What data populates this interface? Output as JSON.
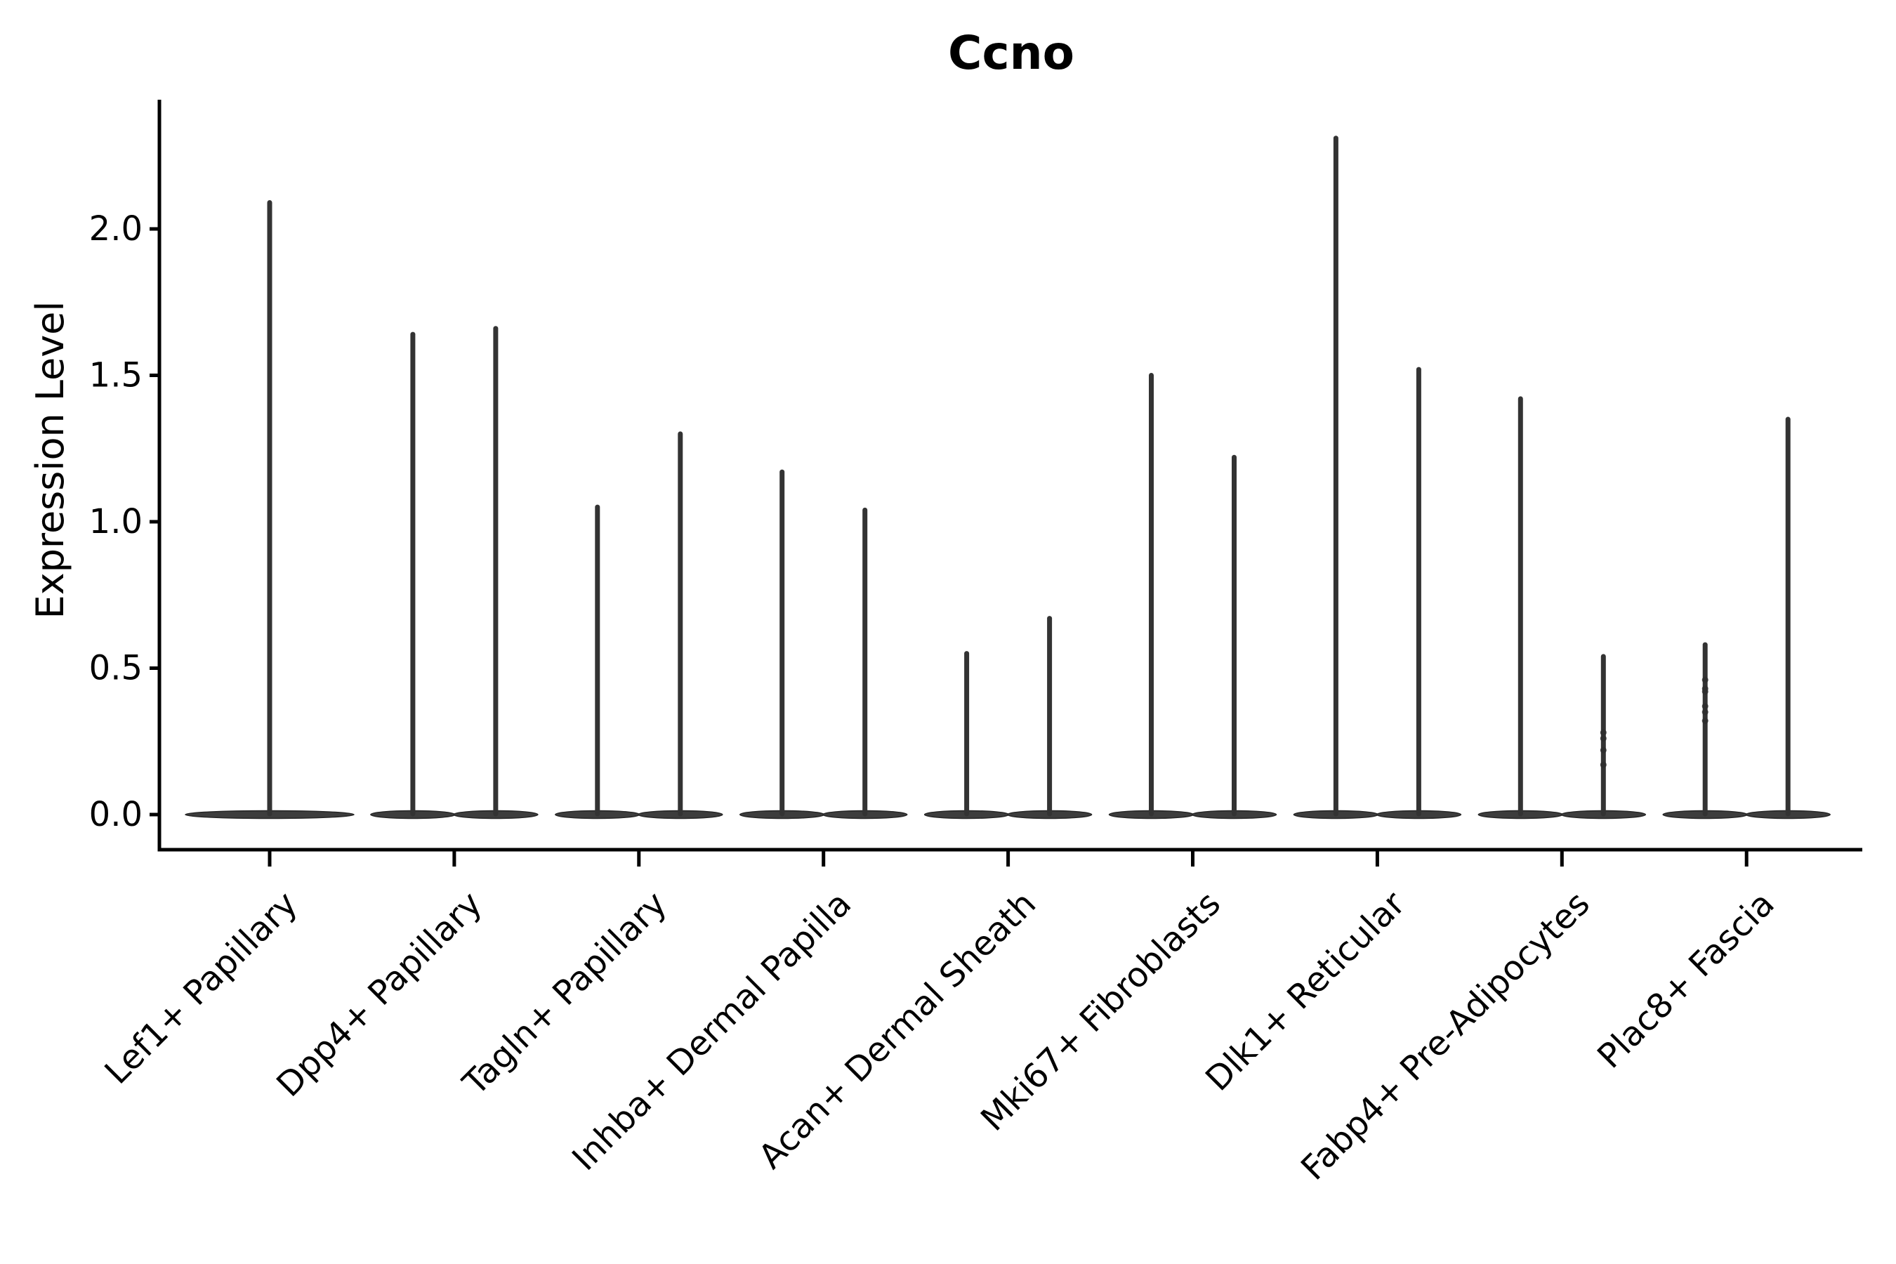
{
  "figure": {
    "background_color": "#ffffff",
    "axis_color": "#000000",
    "violin_color": "#3d3d3d",
    "spike_color": "#333333",
    "dot_color": "#2e2e2e"
  },
  "chart_data": {
    "type": "violin",
    "title": "Ccno",
    "xlabel": "",
    "ylabel": "Expression Level",
    "legend": "none",
    "grid": false,
    "ylim": [
      -0.12,
      2.44
    ],
    "yticks": [
      0.0,
      0.5,
      1.0,
      1.5,
      2.0
    ],
    "ytick_labels": [
      "0.0",
      "0.5",
      "1.0",
      "1.5",
      "2.0"
    ],
    "categories": [
      "Lef1+ Papillary",
      "Dpp4+ Papillary",
      "Tagln+ Papillary",
      "Inhba+ Dermal Papilla",
      "Acan+ Dermal Sheath",
      "Mki67+ Fibroblasts",
      "Dlk1+ Reticular",
      "Fabp4+ Pre-Adipocytes",
      "Plac8+ Fascia"
    ],
    "groups": [
      {
        "label": "Lef1+ Papillary",
        "violins": [
          {
            "max": 2.09
          }
        ]
      },
      {
        "label": "Dpp4+ Papillary",
        "violins": [
          {
            "max": 1.64
          },
          {
            "max": 1.66
          }
        ]
      },
      {
        "label": "Tagln+ Papillary",
        "violins": [
          {
            "max": 1.05
          },
          {
            "max": 1.3
          }
        ]
      },
      {
        "label": "Inhba+ Dermal Papilla",
        "violins": [
          {
            "max": 1.17
          },
          {
            "max": 1.04
          }
        ]
      },
      {
        "label": "Acan+ Dermal Sheath",
        "violins": [
          {
            "max": 0.55
          },
          {
            "max": 0.67
          }
        ]
      },
      {
        "label": "Mki67+ Fibroblasts",
        "violins": [
          {
            "max": 1.5
          },
          {
            "max": 1.22
          }
        ]
      },
      {
        "label": "Dlk1+ Reticular",
        "violins": [
          {
            "max": 2.31
          },
          {
            "max": 1.52
          }
        ]
      },
      {
        "label": "Fabp4+ Pre-Adipocytes",
        "violins": [
          {
            "max": 1.42
          },
          {
            "max": 0.54,
            "dots": [
              0.28,
              0.26,
              0.22,
              0.17
            ]
          }
        ]
      },
      {
        "label": "Plac8+ Fascia",
        "violins": [
          {
            "max": 0.58,
            "dots": [
              0.46,
              0.43,
              0.42,
              0.37,
              0.35,
              0.32
            ]
          },
          {
            "max": 1.35
          }
        ]
      }
    ],
    "description": "Violin plot of Ccno expression; most cells at 0 giving flat violins with thin high-expression spikes. First category drawn as a single full-width violin, remaining categories as side-by-side split pairs."
  }
}
